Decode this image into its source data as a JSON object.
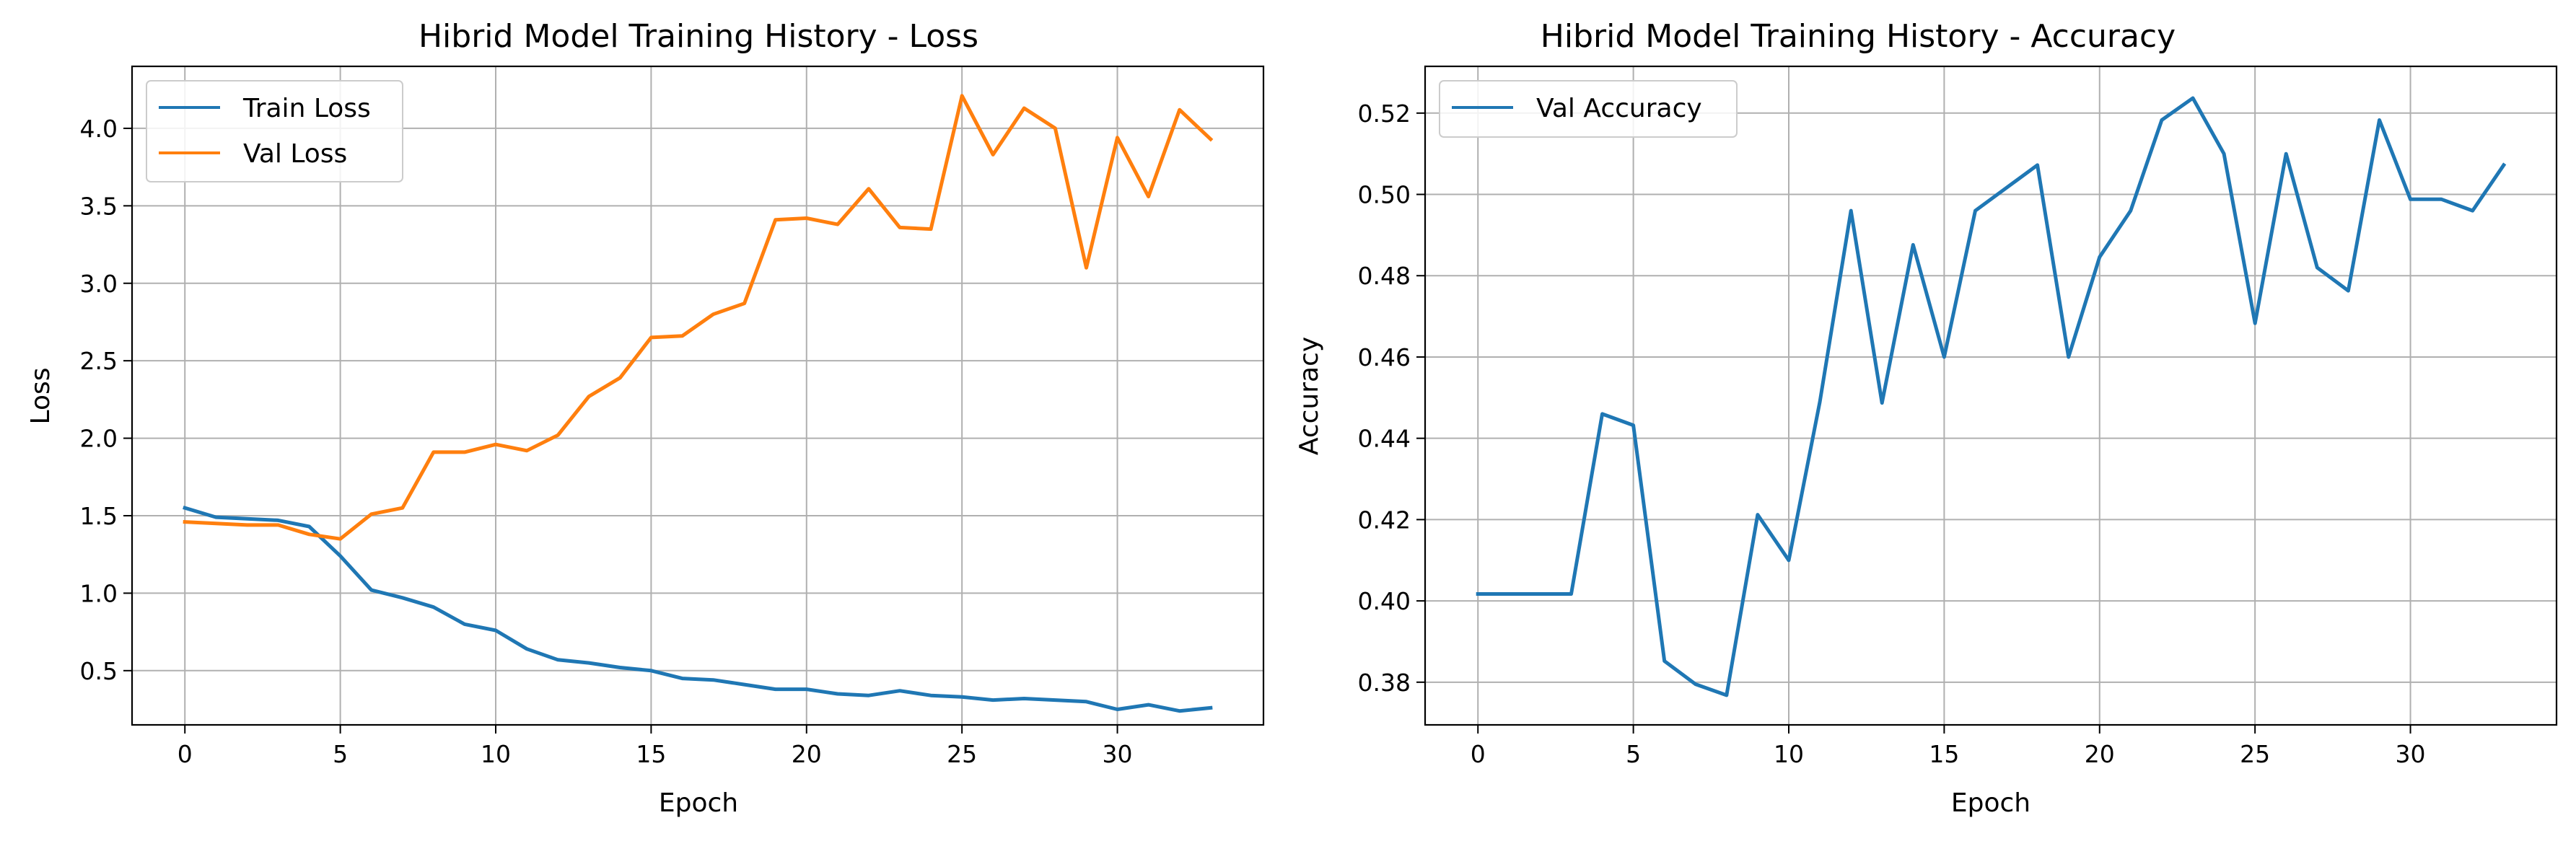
{
  "chart_data": [
    {
      "type": "line",
      "title": "Hibrid Model Training History - Loss",
      "xlabel": "Epoch",
      "ylabel": "Loss",
      "xlim": [
        -1.7,
        34.7
      ],
      "ylim": [
        0.15,
        4.4
      ],
      "xticks": [
        0,
        5,
        10,
        15,
        20,
        25,
        30
      ],
      "yticks": [
        0.5,
        1.0,
        1.5,
        2.0,
        2.5,
        3.0,
        3.5,
        4.0
      ],
      "ytick_labels": [
        "0.5",
        "1.0",
        "1.5",
        "2.0",
        "2.5",
        "3.0",
        "3.5",
        "4.0"
      ],
      "grid": true,
      "legend": "upper left",
      "x": [
        0,
        1,
        2,
        3,
        4,
        5,
        6,
        7,
        8,
        9,
        10,
        11,
        12,
        13,
        14,
        15,
        16,
        17,
        18,
        19,
        20,
        21,
        22,
        23,
        24,
        25,
        26,
        27,
        28,
        29,
        30,
        31,
        32,
        33
      ],
      "series": [
        {
          "name": "Train Loss",
          "color": "#1f77b4",
          "values": [
            1.55,
            1.49,
            1.48,
            1.47,
            1.43,
            1.24,
            1.02,
            0.97,
            0.91,
            0.8,
            0.76,
            0.64,
            0.57,
            0.55,
            0.52,
            0.5,
            0.45,
            0.44,
            0.41,
            0.38,
            0.38,
            0.35,
            0.34,
            0.37,
            0.34,
            0.33,
            0.31,
            0.32,
            0.31,
            0.3,
            0.25,
            0.28,
            0.24,
            0.26
          ]
        },
        {
          "name": "Val Loss",
          "color": "#ff7f0e",
          "values": [
            1.46,
            1.45,
            1.44,
            1.44,
            1.38,
            1.35,
            1.51,
            1.55,
            1.91,
            1.91,
            1.96,
            1.92,
            2.02,
            2.27,
            2.39,
            2.65,
            2.66,
            2.8,
            2.87,
            3.41,
            3.42,
            3.38,
            3.61,
            3.36,
            3.35,
            4.21,
            3.83,
            4.13,
            4.0,
            3.1,
            3.94,
            3.56,
            4.12,
            3.93
          ]
        }
      ]
    },
    {
      "type": "line",
      "title": "Hibrid Model Training History - Accuracy",
      "xlabel": "Epoch",
      "ylabel": "Accuracy",
      "xlim": [
        -1.7,
        34.7
      ],
      "ylim": [
        0.3695,
        0.5315
      ],
      "xticks": [
        0,
        5,
        10,
        15,
        20,
        25,
        30
      ],
      "yticks": [
        0.38,
        0.4,
        0.42,
        0.44,
        0.46,
        0.48,
        0.5,
        0.52
      ],
      "ytick_labels": [
        "0.38",
        "0.40",
        "0.42",
        "0.44",
        "0.46",
        "0.48",
        "0.50",
        "0.52"
      ],
      "grid": true,
      "legend": "upper left",
      "x": [
        0,
        1,
        2,
        3,
        4,
        5,
        6,
        7,
        8,
        9,
        10,
        11,
        12,
        13,
        14,
        15,
        16,
        17,
        18,
        19,
        20,
        21,
        22,
        23,
        24,
        25,
        26,
        27,
        28,
        29,
        30,
        31,
        32,
        33
      ],
      "series": [
        {
          "name": "Val Accuracy",
          "color": "#1f77b4",
          "values": [
            0.4017,
            0.4017,
            0.4017,
            0.4017,
            0.446,
            0.4432,
            0.3852,
            0.3795,
            0.3768,
            0.4212,
            0.41,
            0.449,
            0.496,
            0.4487,
            0.4876,
            0.46,
            0.496,
            0.5016,
            0.5072,
            0.46,
            0.4846,
            0.496,
            0.5183,
            0.5237,
            0.51,
            0.4683,
            0.51,
            0.482,
            0.4763,
            0.5183,
            0.4988,
            0.4988,
            0.496,
            0.5072
          ]
        }
      ]
    }
  ]
}
